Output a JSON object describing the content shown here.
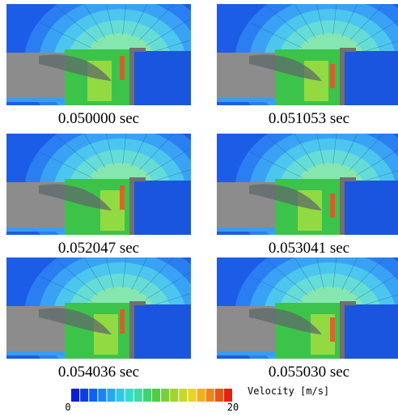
{
  "panels": [
    {
      "caption": "0.050000 sec"
    },
    {
      "caption": "0.051053 sec"
    },
    {
      "caption": "0.052047 sec"
    },
    {
      "caption": "0.053041 sec"
    },
    {
      "caption": "0.054036 sec"
    },
    {
      "caption": "0.055030 sec"
    }
  ],
  "colorbar": {
    "label": "Velocity [m/s]",
    "min": 0,
    "max": 20
  }
}
